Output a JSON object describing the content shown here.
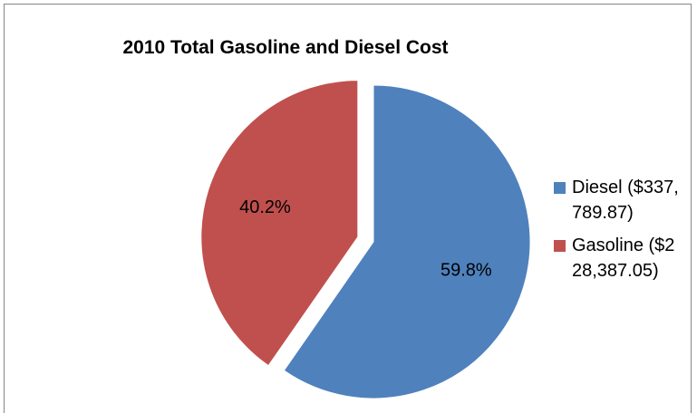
{
  "chart_data": {
    "type": "pie",
    "title": "2010 Total Gasoline and Diesel Cost",
    "legend_position": "right",
    "slices": [
      {
        "name": "Diesel ($337,789.87)",
        "value": 337789.87,
        "percent_label": "59.8%",
        "color": "#4f81bd",
        "exploded": false
      },
      {
        "name": "Gasoline ($228,387.05)",
        "value": 228387.05,
        "percent_label": "40.2%",
        "color": "#c0504d",
        "exploded": true
      }
    ]
  }
}
